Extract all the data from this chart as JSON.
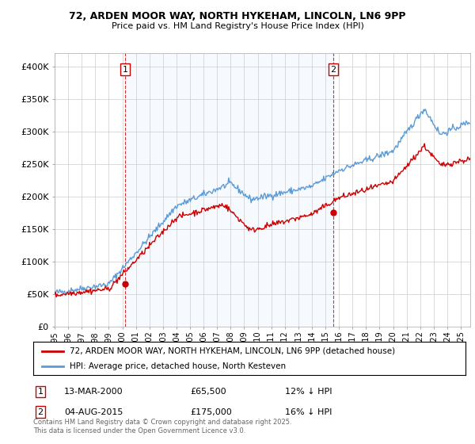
{
  "title1": "72, ARDEN MOOR WAY, NORTH HYKEHAM, LINCOLN, LN6 9PP",
  "title2": "Price paid vs. HM Land Registry's House Price Index (HPI)",
  "legend_line1": "72, ARDEN MOOR WAY, NORTH HYKEHAM, LINCOLN, LN6 9PP (detached house)",
  "legend_line2": "HPI: Average price, detached house, North Kesteven",
  "marker1_date": "13-MAR-2000",
  "marker1_price": "£65,500",
  "marker1_hpi": "12% ↓ HPI",
  "marker2_date": "04-AUG-2015",
  "marker2_price": "£175,000",
  "marker2_hpi": "16% ↓ HPI",
  "footer": "Contains HM Land Registry data © Crown copyright and database right 2025.\nThis data is licensed under the Open Government Licence v3.0.",
  "ylim": [
    0,
    420000
  ],
  "yticks": [
    0,
    50000,
    100000,
    150000,
    200000,
    250000,
    300000,
    350000,
    400000
  ],
  "ytick_labels": [
    "£0",
    "£50K",
    "£100K",
    "£150K",
    "£200K",
    "£250K",
    "£300K",
    "£350K",
    "£400K"
  ],
  "hpi_color": "#5b9bd5",
  "price_color": "#cc0000",
  "vline_color": "#cc0000",
  "shade_color": "#ddeeff",
  "background_color": "#ffffff",
  "grid_color": "#cccccc",
  "sale1_x": 2000.2,
  "sale1_y": 65500,
  "sale2_x": 2015.58,
  "sale2_y": 175000,
  "xmin": 1995.0,
  "xmax": 2025.7
}
